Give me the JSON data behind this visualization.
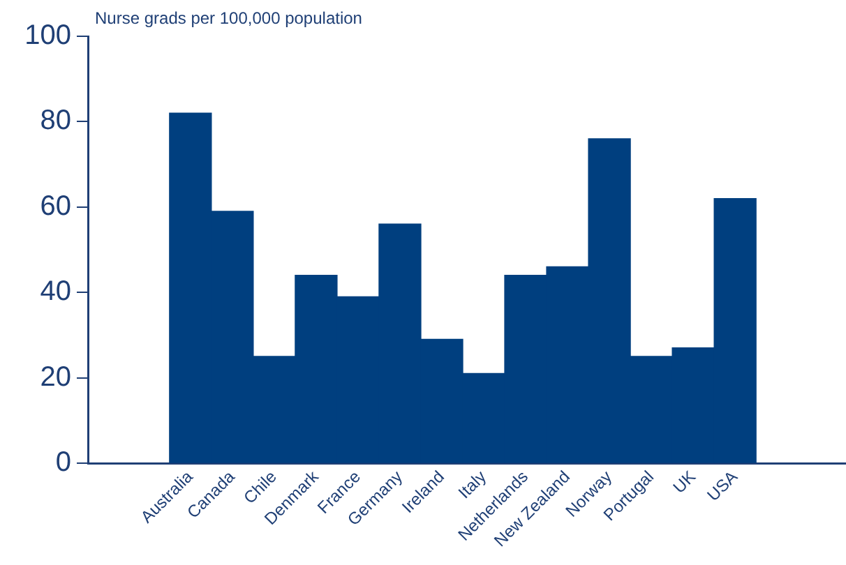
{
  "chart_data": {
    "type": "bar",
    "ylabel": "Nurse grads per 100,000 population",
    "categories": [
      "Australia",
      "Canada",
      "Chile",
      "Denmark",
      "France",
      "Germany",
      "Ireland",
      "Italy",
      "Netherlands",
      "New Zealand",
      "Norway",
      "Portugal",
      "UK",
      "USA"
    ],
    "values": [
      82,
      59,
      25,
      44,
      39,
      56,
      29,
      21,
      44,
      46,
      76,
      25,
      27,
      62
    ],
    "color": "#003f7f",
    "ylim": [
      0,
      100
    ],
    "yticks": [
      0,
      20,
      40,
      60,
      80,
      100
    ],
    "grid": false,
    "legend": false
  }
}
